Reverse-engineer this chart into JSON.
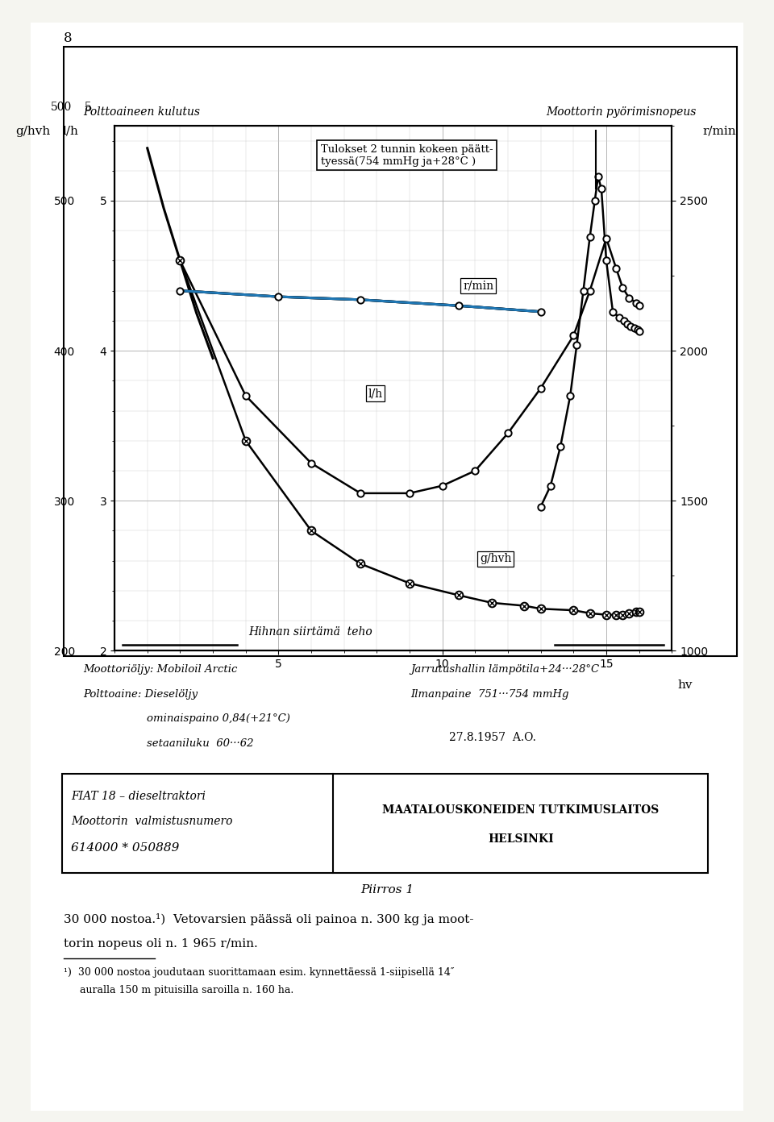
{
  "title_left": "Polttoaineen kulutus",
  "title_right": "Moottorin pyörimisnopeus",
  "xlabel": "hv",
  "ylabel_left1": "l/h",
  "ylabel_left2": "g/hvh",
  "ylabel_right": "r/min",
  "xlim": [
    0,
    17
  ],
  "lh_ylim": [
    2.0,
    5.5
  ],
  "ghvh_ylim": [
    200,
    550
  ],
  "rmin_ylim": [
    1000,
    2750
  ],
  "lh_yticks": [
    2,
    3,
    4,
    5
  ],
  "ghvh_yticks": [
    200,
    300,
    400,
    500
  ],
  "rmin_yticks": [
    1000,
    1500,
    2000,
    2500
  ],
  "xticks_major": [
    5,
    10,
    15
  ],
  "annotation_box": "Tulokset 2 tunnin kokeen päätt-\ntyessä(754 mmHg ja+28°C )",
  "label_rmin": "r/min",
  "label_lh": "l/h",
  "label_ghvh": "g/hvh",
  "label_hihnan": "Hihnan siirtämä  teho",
  "footnote_left1": "Moottoriöljy: Mobiloil Arctic",
  "footnote_left2": "Polttoaine: Dieselöljy",
  "footnote_left3": "ominaispaino 0,84(+21°C)",
  "footnote_left4": "setaaniluku  60···62",
  "footnote_right1": "Jarrutushallin lämpötila+24···28°C",
  "footnote_right2": "Ilmanpaine  751···754 mmHg",
  "date": "27.8.1957  A.O.",
  "box_left1": "FIAT 18 – dieseltraktori",
  "box_left2": "Moottorin  valmistusnumero",
  "box_left3": "614000 * 050889",
  "box_right1": "MAATALOUSKONEIDEN TUTKIMUSLAITOS",
  "box_right2": "HELSINKI",
  "caption": "Piirros 1",
  "text_below1": "30 000 nostoa.¹)  Vetovarsien päässä oli painoa n. 300 kg ja moot-",
  "text_below2": "torin nopeus oli n. 1 965 r/min.",
  "footnote_text1": "¹)  30 000 nostoa joudutaan suorittamaan esim. kynnettäessä 1-siipisellä 14″",
  "footnote_text2": "     auralla 150 m pituisilla saroilla n. 160 ha.",
  "page_number": "8",
  "rmin_flat_x": [
    2.0,
    5.0,
    7.5,
    10.5,
    13.0
  ],
  "rmin_flat_y": [
    2200,
    2180,
    2170,
    2150,
    2130
  ],
  "lh_x": [
    2.0,
    4.0,
    6.0,
    7.5,
    9.0,
    10.0,
    11.0,
    12.0,
    13.0
  ],
  "lh_y": [
    4.6,
    3.7,
    3.25,
    3.05,
    3.05,
    3.1,
    3.2,
    3.45,
    3.75
  ],
  "ghvh_x": [
    2.0,
    4.0,
    6.0,
    7.5,
    9.0,
    10.5,
    11.5,
    12.5,
    13.0,
    14.0,
    14.5,
    15.0,
    15.3,
    15.5,
    15.7,
    15.9,
    16.0
  ],
  "ghvh_y": [
    460,
    340,
    280,
    258,
    245,
    237,
    232,
    230,
    228,
    227,
    225,
    224,
    224,
    224,
    225,
    226,
    226
  ],
  "rpm_peak_x": [
    13.0,
    13.3,
    13.6,
    13.9,
    14.1,
    14.3,
    14.5,
    14.65,
    14.75,
    14.85,
    15.0,
    15.2,
    15.4,
    15.55,
    15.65,
    15.75,
    15.85,
    15.95,
    16.0
  ],
  "rpm_peak_y": [
    1480,
    1550,
    1680,
    1850,
    2020,
    2200,
    2380,
    2500,
    2580,
    2540,
    2300,
    2130,
    2110,
    2100,
    2090,
    2080,
    2075,
    2070,
    2065
  ],
  "lh_extra_x": [
    14.0,
    14.5,
    15.0,
    15.3,
    15.5,
    15.7,
    15.9,
    16.0
  ],
  "lh_extra_y": [
    4.1,
    4.4,
    4.75,
    4.55,
    4.42,
    4.35,
    4.32,
    4.3
  ],
  "steep_x": [
    1.0,
    1.5,
    2.0,
    2.5,
    3.0
  ],
  "steep_y": [
    5.35,
    4.95,
    4.6,
    4.25,
    3.95
  ]
}
